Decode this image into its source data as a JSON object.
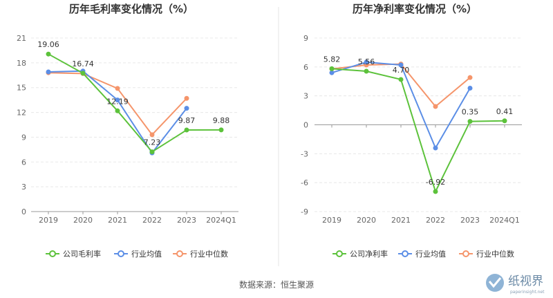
{
  "chart_data": [
    {
      "type": "line",
      "title": "历年毛利率变化情况（%）",
      "categories": [
        "2019",
        "2020",
        "2021",
        "2022",
        "2023",
        "2024Q1"
      ],
      "yticks": [
        "0",
        "3",
        "6",
        "9",
        "12",
        "15",
        "18",
        "21"
      ],
      "ylim": [
        0,
        21
      ],
      "grid": true,
      "legend_position": "bottom",
      "series": [
        {
          "name": "公司毛利率",
          "color": "#5cc23b",
          "values": [
            19.06,
            16.74,
            12.19,
            7.23,
            9.87,
            9.88
          ],
          "labels": [
            "19.06",
            "16.74",
            "12.19",
            "7.23",
            "9.87",
            "9.88"
          ]
        },
        {
          "name": "行业均值",
          "color": "#5b8ee6",
          "values": [
            16.9,
            17.0,
            13.5,
            7.1,
            12.5,
            null
          ]
        },
        {
          "name": "行业中位数",
          "color": "#f5956b",
          "values": [
            16.8,
            16.7,
            14.9,
            9.3,
            13.7,
            null
          ]
        }
      ]
    },
    {
      "type": "line",
      "title": "历年净利率变化情况（%）",
      "categories": [
        "2019",
        "2020",
        "2021",
        "2022",
        "2023",
        "2024Q1"
      ],
      "yticks": [
        "-9",
        "-6",
        "-3",
        "0",
        "3",
        "6",
        "9"
      ],
      "ylim": [
        -9,
        9
      ],
      "grid": true,
      "legend_position": "bottom",
      "series": [
        {
          "name": "公司净利率",
          "color": "#5cc23b",
          "values": [
            5.82,
            5.56,
            4.7,
            -6.92,
            0.35,
            0.41
          ],
          "labels": [
            "5.82",
            "5.56",
            "4.70",
            "-6.92",
            "0.35",
            "0.41"
          ]
        },
        {
          "name": "行业均值",
          "color": "#5b8ee6",
          "values": [
            5.4,
            6.5,
            6.2,
            -2.4,
            3.8,
            null
          ]
        },
        {
          "name": "行业中位数",
          "color": "#f5956b",
          "values": [
            5.8,
            6.2,
            6.3,
            1.9,
            4.9,
            null
          ]
        }
      ]
    }
  ],
  "source": "数据来源：恒生聚源",
  "watermark": {
    "text": "纸视界",
    "sub": "paperinsight.net"
  }
}
